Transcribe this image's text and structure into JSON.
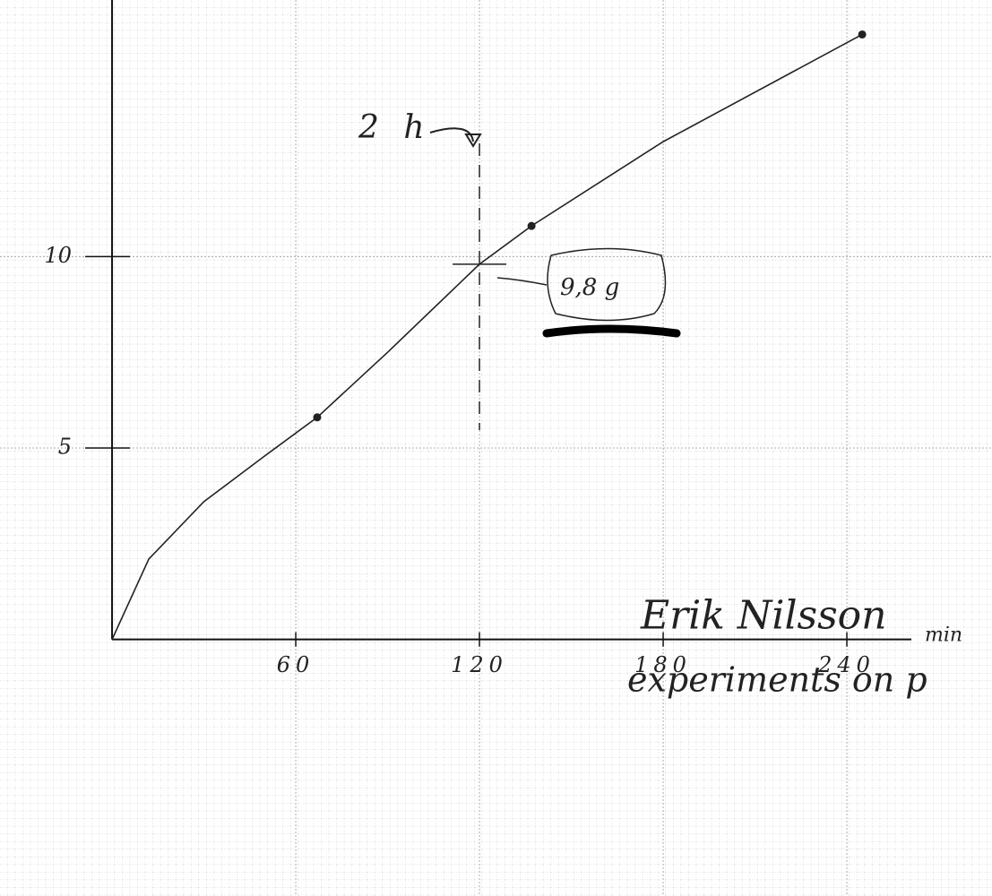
{
  "chart_data": {
    "type": "line",
    "x_label": "min",
    "x": [
      0,
      12,
      30,
      50,
      67,
      90,
      120,
      137,
      180,
      245
    ],
    "series": [
      {
        "name": "curve",
        "color": "#222222",
        "values": [
          0,
          2.1,
          3.6,
          4.8,
          5.8,
          7.5,
          9.8,
          10.8,
          13.0,
          15.8
        ]
      }
    ],
    "points": {
      "x": [
        67,
        137,
        245
      ],
      "values": [
        5.8,
        10.8,
        15.8
      ],
      "color": "#222222"
    },
    "xlim": [
      -36.6,
      287.4
    ],
    "ylim": [
      -6.7,
      16.7
    ],
    "xticks": [
      60,
      120,
      180,
      240
    ],
    "yticks": [
      5,
      10
    ],
    "grid": true,
    "annotations": [
      "2 h",
      "9,8 g",
      "Erik Nilsson",
      "experiments on p"
    ]
  }
}
